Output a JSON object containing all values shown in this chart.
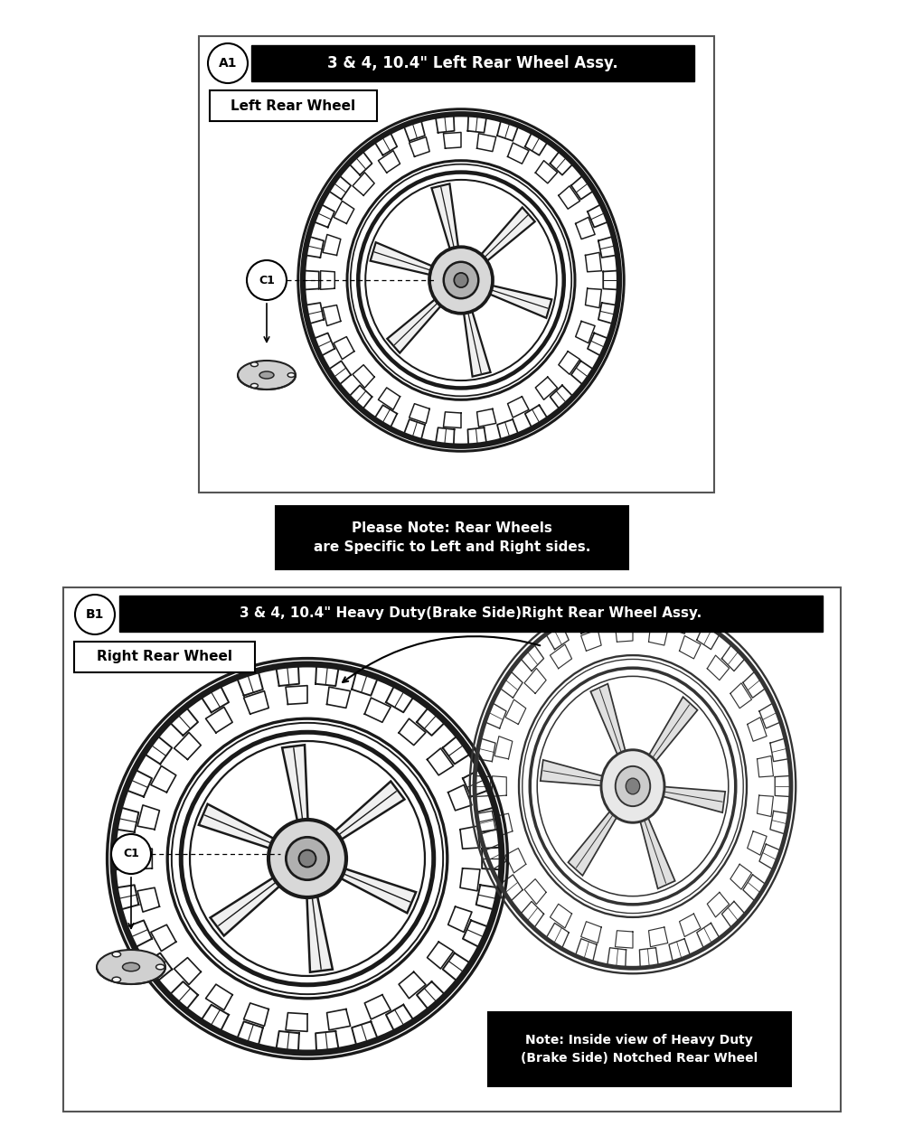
{
  "section_A_label": "A1",
  "section_A_title": "3 & 4, 10.4\" Left Rear Wheel Assy.",
  "section_A_sublabel": "Left Rear Wheel",
  "section_A_callout": "C1",
  "section_B_label": "B1",
  "section_B_title": "3 & 4, 10.4\" Heavy Duty(Brake Side)Right Rear Wheel Assy.",
  "section_B_sublabel": "Right Rear Wheel",
  "section_B_callout": "C1",
  "note_text": "Please Note: Rear Wheels\nare Specific to Left and Right sides.",
  "note2_text": "Note: Inside view of Heavy Duty\n(Brake Side) Notched Rear Wheel",
  "bg_color": "#ffffff",
  "box_border_color": "#666666",
  "title_bg": "#000000",
  "title_fg": "#ffffff"
}
